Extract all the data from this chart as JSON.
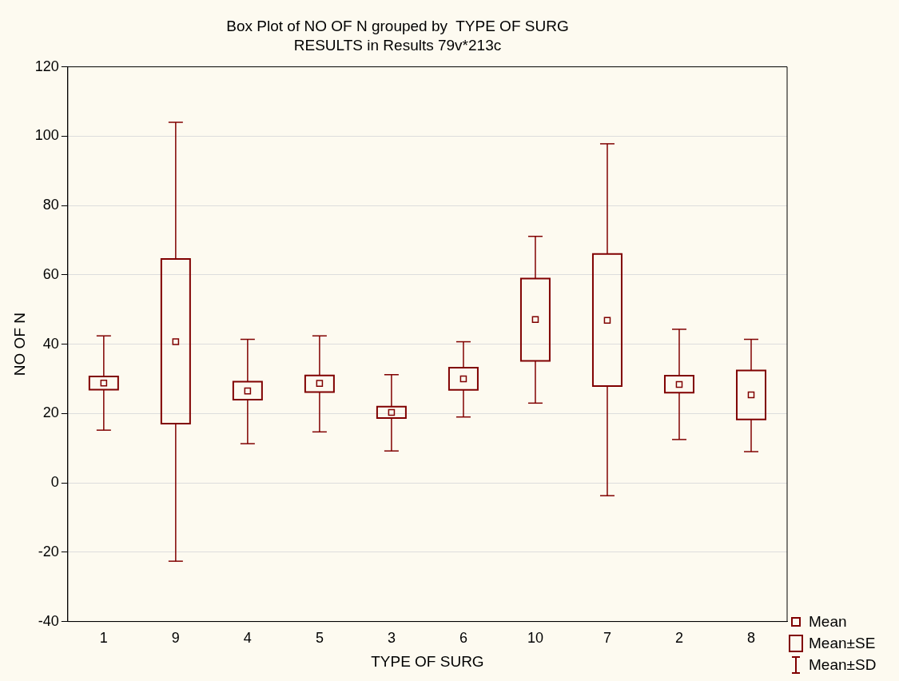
{
  "chart_data": {
    "type": "box",
    "title": "Box Plot of NO OF N grouped by  TYPE OF SURG",
    "subtitle": "RESULTS in Results 79v*213c",
    "xlabel": "TYPE OF SURG",
    "ylabel": "NO OF N",
    "categories": [
      "1",
      "9",
      "4",
      "5",
      "3",
      "6",
      "10",
      "7",
      "2",
      "8"
    ],
    "color": "#800000",
    "marker": "square",
    "grid": "y",
    "ylim": [
      -40,
      120
    ],
    "yticks": [
      -40,
      -20,
      0,
      20,
      40,
      60,
      80,
      100,
      120
    ],
    "boxes": [
      {
        "low": 15.2,
        "q1": 26.9,
        "median": 28.8,
        "q3": 30.7,
        "high": 42.4
      },
      {
        "low": -22.6,
        "q1": 17.1,
        "median": 40.7,
        "q3": 64.6,
        "high": 104
      },
      {
        "low": 11.3,
        "q1": 24,
        "median": 26.5,
        "q3": 29.2,
        "high": 41.4
      },
      {
        "low": 14.7,
        "q1": 26.2,
        "median": 28.7,
        "q3": 31,
        "high": 42.4
      },
      {
        "low": 9.2,
        "q1": 18.7,
        "median": 20.3,
        "q3": 22,
        "high": 31.2
      },
      {
        "low": 19,
        "q1": 26.8,
        "median": 30,
        "q3": 33.2,
        "high": 40.7
      },
      {
        "low": 23,
        "q1": 35.2,
        "median": 47.1,
        "q3": 58.9,
        "high": 71.1
      },
      {
        "low": -3.7,
        "q1": 27.9,
        "median": 46.9,
        "q3": 66,
        "high": 97.8
      },
      {
        "low": 12.5,
        "q1": 26,
        "median": 28.4,
        "q3": 30.9,
        "high": 44.3
      },
      {
        "low": 9,
        "q1": 18.3,
        "median": 25.4,
        "q3": 32.4,
        "high": 41.4
      }
    ],
    "annotations": [
      "Mean",
      "Mean±SE",
      "Mean±SD"
    ]
  }
}
